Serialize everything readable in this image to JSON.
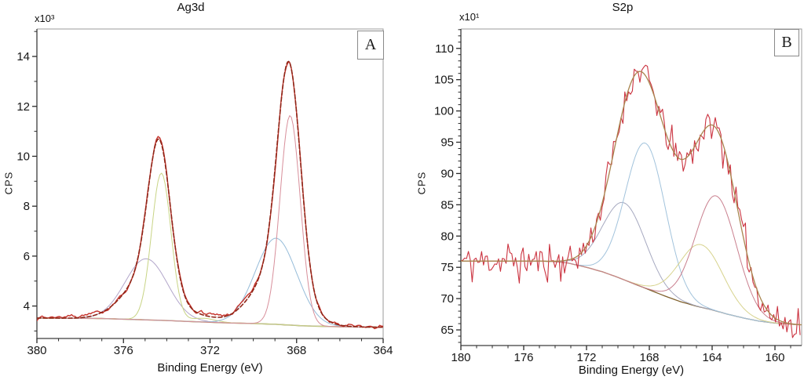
{
  "figure": {
    "background": "#ffffff"
  },
  "chart_data": [
    {
      "type": "line",
      "id": "A",
      "title": "Ag3d",
      "corner_label": "A",
      "xlabel": "Binding Energy (eV)",
      "ylabel": "CPS",
      "y_multiplier": "x10³",
      "xlim": [
        380,
        364
      ],
      "ylim": [
        2.7,
        15.1
      ],
      "x_major_ticks": [
        380,
        376,
        372,
        368,
        364
      ],
      "x_minor_step": 1,
      "y_major_ticks": [
        4,
        6,
        8,
        10,
        12,
        14
      ],
      "y_minor_step": 1,
      "grid": false,
      "legend": "none",
      "baseline_anchors": [
        [
          380,
          3.52
        ],
        [
          377,
          3.5
        ],
        [
          375.5,
          3.46
        ],
        [
          374,
          3.42
        ],
        [
          373,
          3.38
        ],
        [
          372,
          3.35
        ],
        [
          371,
          3.32
        ],
        [
          370,
          3.3
        ],
        [
          369,
          3.27
        ],
        [
          368,
          3.22
        ],
        [
          367.5,
          3.2
        ],
        [
          366,
          3.17
        ],
        [
          364,
          3.15
        ]
      ],
      "series": [
        {
          "name": "background",
          "role": "baseline",
          "color": "#8f7d26",
          "width": 1.4,
          "step": 0.2,
          "peaks": []
        },
        {
          "name": "ag3d32-broad-component",
          "role": "component",
          "color": "#b2a6ca",
          "width": 1,
          "step": 0.08,
          "peaks": [
            {
              "c": 374.95,
              "a": 2.45,
              "w": 2.3
            }
          ]
        },
        {
          "name": "ag3d32-main-component",
          "role": "component",
          "color": "#c8d485",
          "width": 1,
          "step": 0.08,
          "peaks": [
            {
              "c": 374.25,
              "a": 5.9,
              "w": 1.05
            },
            {
              "c": 372.3,
              "a": 0.15,
              "w": 1.3
            }
          ]
        },
        {
          "name": "ag3d52-broad-component",
          "role": "component",
          "color": "#96bcd9",
          "width": 1,
          "step": 0.08,
          "peaks": [
            {
              "c": 368.95,
              "a": 3.45,
              "w": 2.25
            }
          ]
        },
        {
          "name": "ag3d52-main-component",
          "role": "component",
          "color": "#d88f9b",
          "width": 1,
          "step": 0.08,
          "peaks": [
            {
              "c": 368.3,
              "a": 8.4,
              "w": 1.1
            }
          ]
        },
        {
          "name": "raw-data",
          "role": "data",
          "color": "#c5332c",
          "width": 1.4,
          "step": 0.08,
          "peaks": [
            {
              "c": 374.35,
              "a": 5.6,
              "w": 1.2
            },
            {
              "c": 374.8,
              "a": 1.8,
              "w": 2.6
            },
            {
              "c": 368.35,
              "a": 8.7,
              "w": 1.25
            },
            {
              "c": 368.9,
              "a": 2.1,
              "w": 2.6
            },
            {
              "c": 372.2,
              "a": 0.2,
              "w": 1.4
            },
            {
              "c": 378.2,
              "a": 0.09,
              "w": 2.2
            },
            {
              "c": 370.3,
              "a": 0.08,
              "w": 1.0
            }
          ],
          "noise": {
            "seed": 7,
            "amp": 0.13,
            "smooth": 1,
            "spike_p": 0,
            "spike_mul": 1
          }
        },
        {
          "name": "fit-envelope",
          "role": "envelope",
          "color": "#8e2517",
          "width": 1.6,
          "dash": "5 3",
          "step": 0.06,
          "peaks": [
            {
              "c": 374.35,
              "a": 5.6,
              "w": 1.2
            },
            {
              "c": 374.8,
              "a": 1.8,
              "w": 2.6
            },
            {
              "c": 368.35,
              "a": 8.7,
              "w": 1.25
            },
            {
              "c": 368.9,
              "a": 2.1,
              "w": 2.6
            },
            {
              "c": 372.2,
              "a": 0.12,
              "w": 1.5
            }
          ]
        }
      ]
    },
    {
      "type": "line",
      "id": "B",
      "title": "S2p",
      "corner_label": "B",
      "xlabel": "Binding Energy (eV)",
      "ylabel": "CPS",
      "y_multiplier": "x10¹",
      "xlim": [
        180,
        158.3
      ],
      "ylim": [
        62.5,
        113.1
      ],
      "x_major_ticks": [
        180,
        176,
        172,
        168,
        164,
        160
      ],
      "x_minor_step": 1,
      "y_major_ticks": [
        65,
        70,
        75,
        80,
        85,
        90,
        95,
        100,
        105,
        110
      ],
      "y_minor_step": 1,
      "grid": false,
      "legend": "none",
      "baseline_anchors": [
        [
          180,
          76
        ],
        [
          175,
          76
        ],
        [
          174,
          75.9
        ],
        [
          173.2,
          75.7
        ],
        [
          172,
          75
        ],
        [
          171,
          74.3
        ],
        [
          170,
          73.4
        ],
        [
          169,
          72.4
        ],
        [
          168,
          71.4
        ],
        [
          167,
          70.4
        ],
        [
          166,
          69.5
        ],
        [
          165,
          68.8
        ],
        [
          164,
          68.2
        ],
        [
          163,
          67.5
        ],
        [
          162,
          66.9
        ],
        [
          161,
          66.4
        ],
        [
          160,
          66.1
        ],
        [
          159,
          65.9
        ],
        [
          158.3,
          65.8
        ]
      ],
      "series": [
        {
          "name": "background",
          "role": "baseline",
          "color": "#7f602c",
          "width": 1.3,
          "step": 0.2,
          "peaks": []
        },
        {
          "name": "s2p-broad-left-component",
          "role": "component",
          "color": "#a6a9c0",
          "width": 1,
          "step": 0.1,
          "peaks": [
            {
              "c": 169.6,
              "a": 12.3,
              "w": 3.2
            }
          ]
        },
        {
          "name": "s2p-main-left-component",
          "role": "component",
          "color": "#a2c3dc",
          "width": 1,
          "step": 0.1,
          "peaks": [
            {
              "c": 168.25,
              "a": 23.2,
              "w": 3.0
            }
          ]
        },
        {
          "name": "s2p-yellow-component",
          "role": "component",
          "color": "#d7d38d",
          "width": 1,
          "step": 0.1,
          "peaks": [
            {
              "c": 164.7,
              "a": 10,
              "w": 3.3
            }
          ]
        },
        {
          "name": "s2p-right-component",
          "role": "component",
          "color": "#c97f8e",
          "width": 1,
          "step": 0.1,
          "peaks": [
            {
              "c": 163.75,
              "a": 18.4,
              "w": 3.1
            }
          ]
        },
        {
          "name": "raw-data",
          "role": "data",
          "color": "#cb3340",
          "width": 1.1,
          "step": 0.12,
          "peaks": [
            {
              "c": 168.6,
              "a": 29,
              "w": 3.6
            },
            {
              "c": 169.6,
              "a": 4,
              "w": 3.4
            },
            {
              "c": 166,
              "a": 9,
              "w": 3.6
            },
            {
              "c": 163.7,
              "a": 26,
              "w": 3.3
            }
          ],
          "noise": {
            "seed": 11,
            "amp": 2.2,
            "smooth": 0,
            "spike_p": 0.12,
            "spike_mul": 1.8
          }
        },
        {
          "name": "fit-envelope",
          "role": "envelope",
          "color": "#a8854e",
          "width": 1.3,
          "step": 0.08,
          "peaks": [
            {
              "c": 168.6,
              "a": 29,
              "w": 3.6
            },
            {
              "c": 169.6,
              "a": 4,
              "w": 3.4
            },
            {
              "c": 166,
              "a": 9,
              "w": 3.6
            },
            {
              "c": 163.7,
              "a": 26,
              "w": 3.3
            }
          ]
        }
      ]
    }
  ]
}
